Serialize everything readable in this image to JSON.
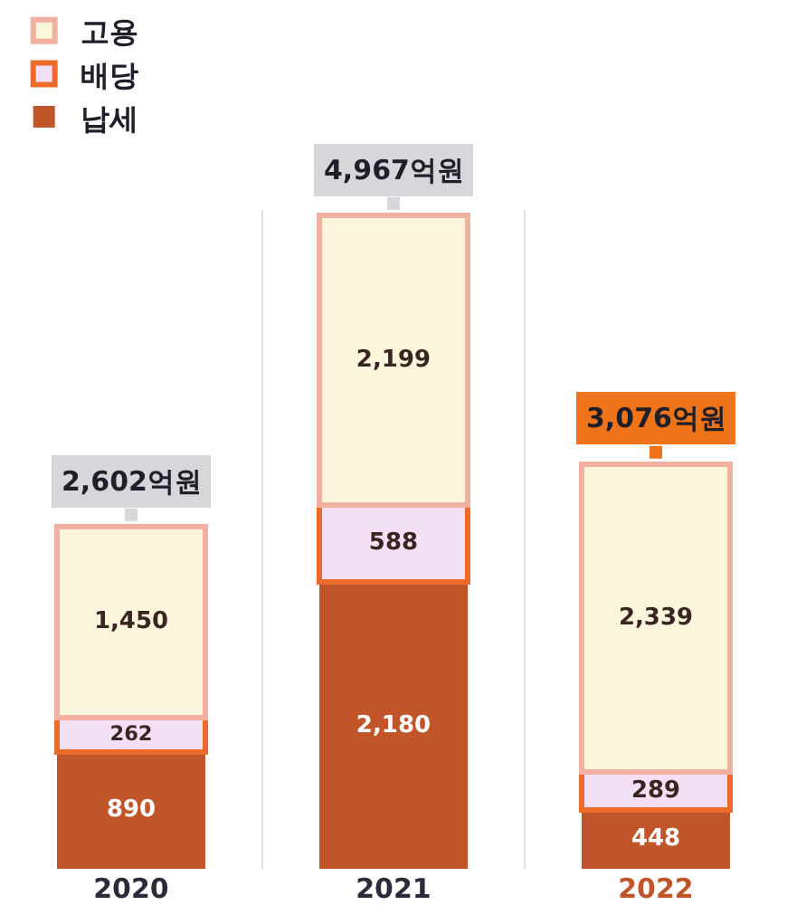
{
  "chart_data": {
    "type": "bar",
    "stacked": true,
    "categories": [
      "2020",
      "2021",
      "2022"
    ],
    "series": [
      {
        "name": "납세",
        "color": "#c0552a",
        "values": [
          890,
          2180,
          448
        ],
        "value_labels": [
          "890",
          "2,180",
          "448"
        ]
      },
      {
        "name": "배당",
        "color": "#f3dff6",
        "values": [
          262,
          588,
          289
        ],
        "value_labels": [
          "262",
          "588",
          "289"
        ]
      },
      {
        "name": "고용",
        "color": "#fbf5dc",
        "values": [
          1450,
          2199,
          2339
        ],
        "value_labels": [
          "1,450",
          "2,199",
          "2,339"
        ]
      }
    ],
    "totals": [
      "2,602억원",
      "4,967억원",
      "3,076억원"
    ],
    "legend": "top left",
    "grid": "x"
  }
}
